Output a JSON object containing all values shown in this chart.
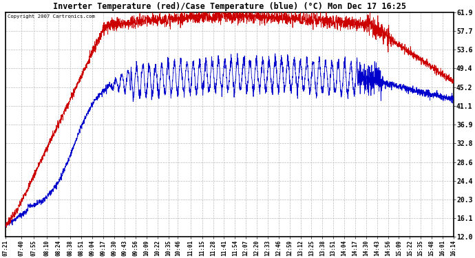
{
  "title": "Inverter Temperature (red)/Case Temperature (blue) (°C) Mon Dec 17 16:25",
  "copyright": "Copyright 2007 Cartronics.com",
  "yticks": [
    12.0,
    16.1,
    20.3,
    24.4,
    28.6,
    32.8,
    36.9,
    41.1,
    45.2,
    49.4,
    53.6,
    57.7,
    61.9
  ],
  "ymin": 12.0,
  "ymax": 61.9,
  "xtick_labels": [
    "07:21",
    "07:40",
    "07:55",
    "08:10",
    "08:24",
    "08:38",
    "08:51",
    "09:04",
    "09:17",
    "09:30",
    "09:43",
    "09:56",
    "10:09",
    "10:22",
    "10:35",
    "10:46",
    "11:01",
    "11:15",
    "11:28",
    "11:41",
    "11:54",
    "12:07",
    "12:20",
    "12:33",
    "12:46",
    "12:59",
    "13:12",
    "13:25",
    "13:38",
    "13:51",
    "14:04",
    "14:17",
    "14:30",
    "14:43",
    "14:56",
    "15:09",
    "15:22",
    "15:35",
    "15:48",
    "16:01",
    "16:14"
  ],
  "background_color": "#ffffff",
  "grid_color": "#bbbbbb",
  "red_color": "#cc0000",
  "blue_color": "#0000cc",
  "figwidth": 6.9,
  "figheight": 3.75,
  "dpi": 100
}
